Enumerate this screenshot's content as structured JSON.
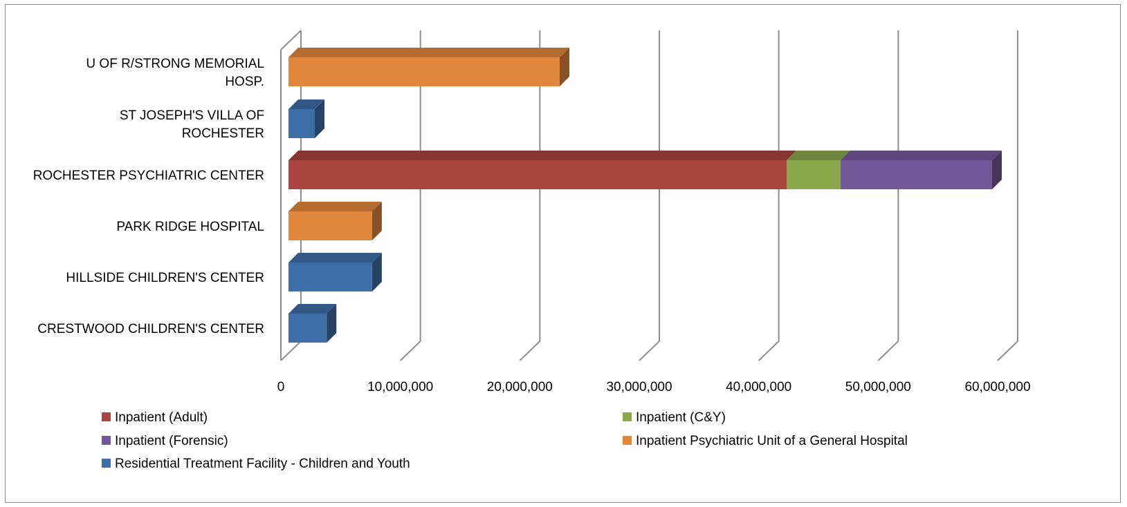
{
  "chart_data": {
    "type": "bar",
    "orientation": "horizontal",
    "stacked": true,
    "style_3d": true,
    "categories": [
      "CRESTWOOD CHILDREN'S CENTER",
      "HILLSIDE CHILDREN'S CENTER",
      "PARK RIDGE HOSPITAL",
      "ROCHESTER PSYCHIATRIC CENTER",
      "ST JOSEPH'S VILLA OF ROCHESTER",
      "U OF R/STRONG MEMORIAL HOSP."
    ],
    "category_lines": [
      [
        "CRESTWOOD CHILDREN'S CENTER"
      ],
      [
        "HILLSIDE CHILDREN'S CENTER"
      ],
      [
        "PARK RIDGE HOSPITAL"
      ],
      [
        "ROCHESTER PSYCHIATRIC CENTER"
      ],
      [
        "ST JOSEPH'S VILLA OF",
        "ROCHESTER"
      ],
      [
        "U OF R/STRONG MEMORIAL",
        "HOSP."
      ]
    ],
    "series": [
      {
        "name": "Inpatient (Adult)",
        "color": "#a9443f",
        "values": [
          0,
          0,
          0,
          41700000,
          0,
          0
        ]
      },
      {
        "name": "Inpatient (C&Y)",
        "color": "#89a84c",
        "values": [
          0,
          0,
          0,
          4500000,
          0,
          0
        ]
      },
      {
        "name": "Inpatient (Forensic)",
        "color": "#74599a",
        "values": [
          0,
          0,
          0,
          12700000,
          0,
          0
        ]
      },
      {
        "name": "Inpatient Psychiatric Unit of a General Hospital",
        "color": "#e1873d",
        "values": [
          0,
          0,
          7000000,
          0,
          0,
          22700000
        ]
      },
      {
        "name": "Residential Treatment Facility - Children and Youth",
        "color": "#3f6ea7",
        "values": [
          3200000,
          7000000,
          0,
          0,
          2200000,
          0
        ]
      }
    ],
    "xlim": [
      0,
      60000000
    ],
    "x_ticks": [
      "0",
      "10,000,000",
      "20,000,000",
      "30,000,000",
      "40,000,000",
      "50,000,000",
      "60,000,000"
    ],
    "x_tick_values": [
      0,
      10000000,
      20000000,
      30000000,
      40000000,
      50000000,
      60000000
    ],
    "grid": true,
    "legend_position": "bottom",
    "title": "",
    "xlabel": "",
    "ylabel": ""
  }
}
